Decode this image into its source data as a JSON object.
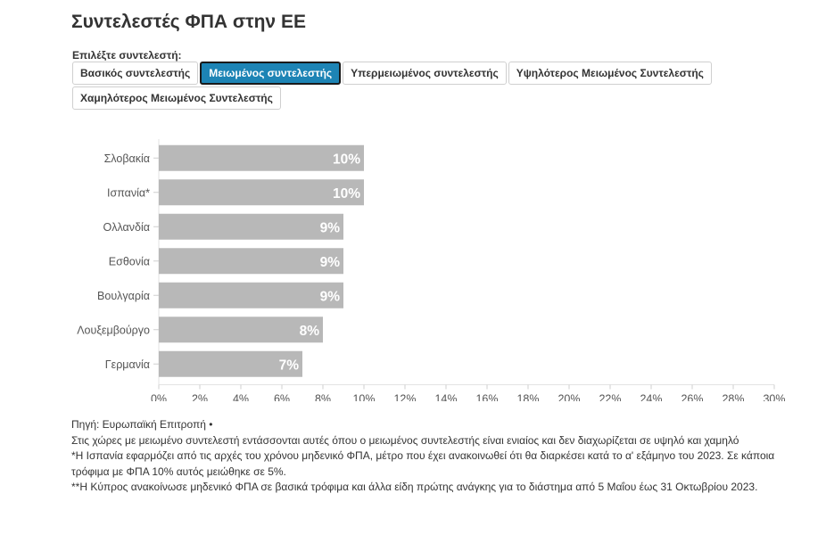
{
  "title": "Συντελεστές ΦΠΑ στην ΕΕ",
  "selector": {
    "label": "Επιλέξτε συντελεστή:",
    "options": [
      {
        "label": "Βασικός συντελεστής",
        "active": false
      },
      {
        "label": "Μειωμένος συντελεστής",
        "active": true
      },
      {
        "label": "Υπερμειωμένος συντελεστής",
        "active": false
      },
      {
        "label": "Υψηλότερος Μειωμένος Συντελεστής",
        "active": false
      },
      {
        "label": "Χαμηλότερος Μειωμένος Συντελεστής",
        "active": false
      }
    ]
  },
  "chart_data": {
    "type": "bar",
    "orientation": "horizontal",
    "categories": [
      "Σλοβακία",
      "Ισπανία*",
      "Ολλανδία",
      "Εσθονία",
      "Βουλγαρία",
      "Λουξεμβούργο",
      "Γερμανία"
    ],
    "values": [
      10,
      10,
      9,
      9,
      9,
      8,
      7
    ],
    "data_labels": [
      "10%",
      "10%",
      "9%",
      "9%",
      "9%",
      "8%",
      "7%"
    ],
    "xlim": [
      0,
      30
    ],
    "x_ticks": [
      "0%",
      "2%",
      "4%",
      "6%",
      "8%",
      "10%",
      "12%",
      "14%",
      "16%",
      "18%",
      "20%",
      "22%",
      "24%",
      "26%",
      "28%",
      "30%"
    ],
    "bar_color": "#b8b8b8",
    "label_color": "#ffffff",
    "grid": false,
    "legend": false
  },
  "footer": {
    "source": "Πηγή: Ευρωπαϊκή Επιτροπή •",
    "note1": "Στις χώρες με μειωμένο συντελεστή εντάσσονται αυτές όπου ο μειωμένος συντελεστής είναι ενιαίος και δεν διαχωρίζεται σε υψηλό και χαμηλό",
    "note2": "*Η Ισπανία εφαρμόζει από τις αρχές του χρόνου μηδενικό ΦΠΑ, μέτρο που έχει ανακοινωθεί ότι θα διαρκέσει κατά το α' εξάμηνο του 2023. Σε κάποια τρόφιμα με ΦΠΑ 10% αυτός μειώθηκε σε 5%.",
    "note3": "**Η Κύπρος ανακοίνωσε μηδενικό ΦΠΑ σε βασικά τρόφιμα και άλλα είδη πρώτης ανάγκης για το διάστημα από 5 Μαΐου έως 31 Οκτωβρίου 2023."
  }
}
